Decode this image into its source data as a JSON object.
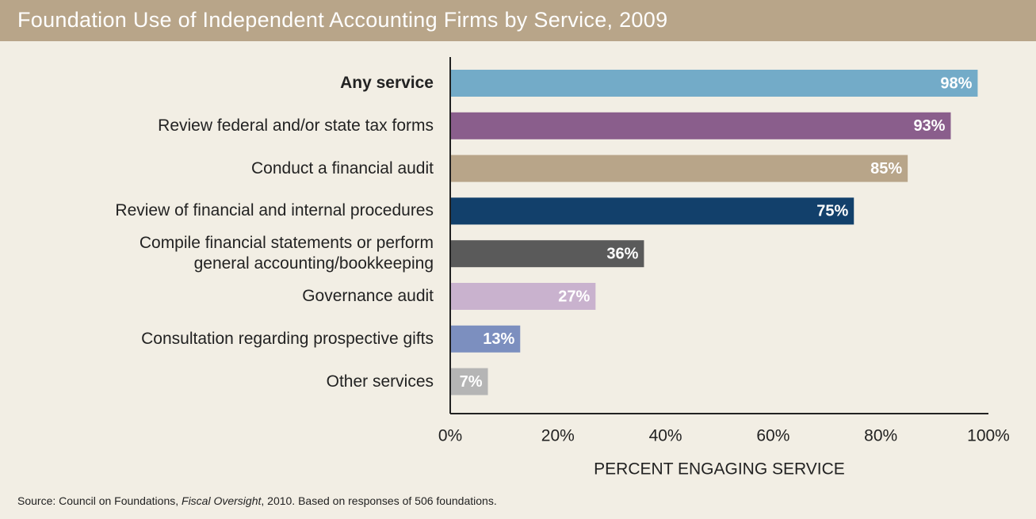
{
  "chart_data": {
    "type": "bar",
    "orientation": "horizontal",
    "title": "Foundation Use of Independent Accounting Firms by Service, 2009",
    "categories": [
      "Any service",
      "Review federal and/or state tax forms",
      "Conduct a financial audit",
      "Review of financial and internal procedures",
      "Compile financial statements or perform\ngeneral accounting/bookkeeping",
      "Governance audit",
      "Consultation regarding prospective gifts",
      "Other services"
    ],
    "values": [
      98,
      93,
      85,
      75,
      36,
      27,
      13,
      7
    ],
    "value_labels": [
      "98%",
      "93%",
      "85%",
      "75%",
      "36%",
      "27%",
      "13%",
      "7%"
    ],
    "colors": [
      "#73abc8",
      "#8a5e8c",
      "#b8a589",
      "#12406b",
      "#5a5a5a",
      "#c9b2ce",
      "#7c8fbf",
      "#b5b5b5"
    ],
    "xlim": [
      0,
      100
    ],
    "xticks": [
      {
        "value": 0,
        "label": "0%"
      },
      {
        "value": 20,
        "label": "20%"
      },
      {
        "value": 40,
        "label": "40%"
      },
      {
        "value": 60,
        "label": "60%"
      },
      {
        "value": 80,
        "label": "80%"
      },
      {
        "value": 100,
        "label": "100%"
      }
    ],
    "xlabel": "PERCENT ENGAGING SERVICE",
    "source": [
      "Source: Council on Foundations, ",
      "Fiscal Oversight",
      ", 2010. Based on responses of 506 foundations."
    ]
  }
}
